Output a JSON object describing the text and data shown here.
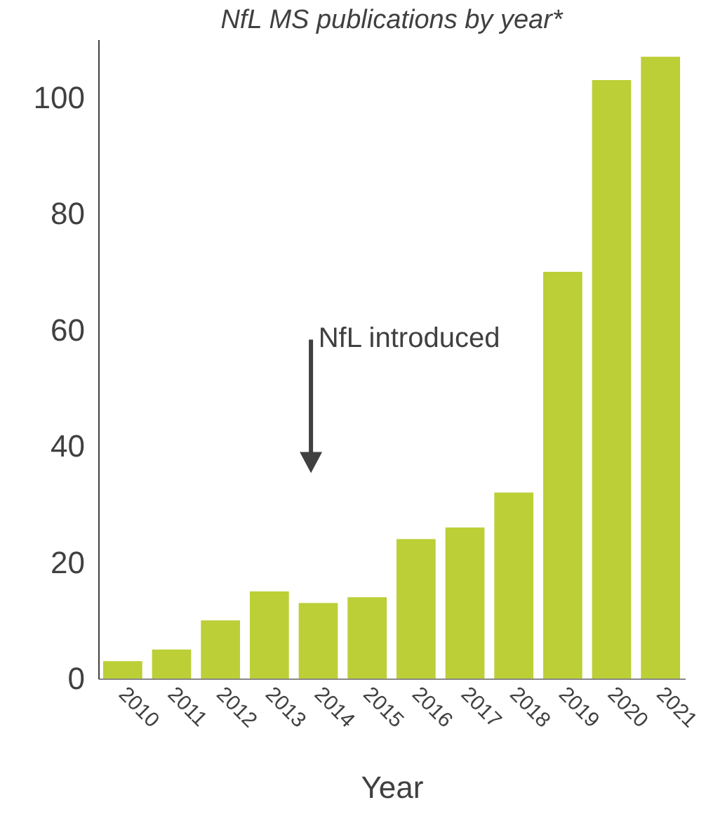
{
  "chart_data": {
    "type": "bar",
    "title": "NfL MS publications by year*",
    "xlabel": "Year",
    "categories": [
      "2010",
      "2011",
      "2012",
      "2013",
      "2014",
      "2015",
      "2016",
      "2017",
      "2018",
      "2019",
      "2020",
      "2021"
    ],
    "values": [
      3,
      5,
      10,
      15,
      13,
      14,
      24,
      26,
      32,
      70,
      103,
      107
    ],
    "color": "#bccf37",
    "ylim": [
      0,
      110
    ],
    "yticks": [
      0,
      20,
      40,
      60,
      80,
      100
    ],
    "grid": false,
    "annotations": [
      "NfL introduced"
    ]
  }
}
